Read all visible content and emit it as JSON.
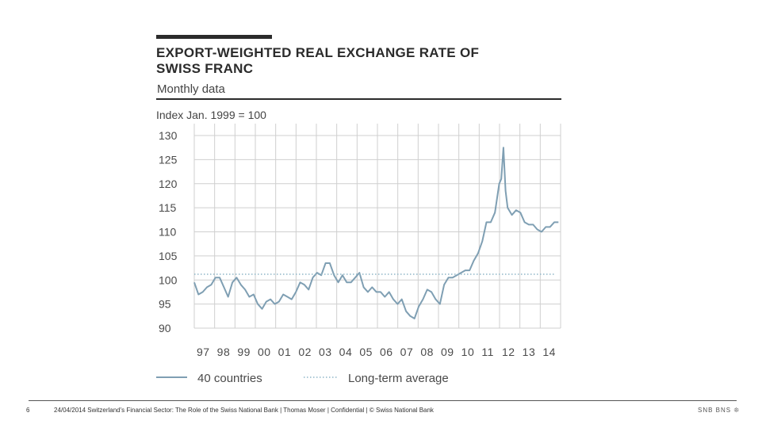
{
  "title_lines": [
    "EXPORT-WEIGHTED REAL EXCHANGE RATE OF",
    "SWISS FRANC"
  ],
  "subtitle": "Monthly data",
  "unit_label": "Index Jan. 1999 = 100",
  "footer": {
    "page_number": "6",
    "text": "24/04/2014 Switzerland's Financial Sector: The Role of the Swiss National Bank | Thomas Moser | Confidential | © Swiss National Bank",
    "logo": "SNB BNS ❊"
  },
  "chart_data": {
    "type": "line",
    "ylim": [
      90,
      130
    ],
    "y_ticks": [
      130,
      125,
      120,
      115,
      110,
      105,
      100,
      95,
      90
    ],
    "x_tick_labels": [
      "97",
      "98",
      "99",
      "00",
      "01",
      "02",
      "03",
      "04",
      "05",
      "06",
      "07",
      "08",
      "09",
      "10",
      "11",
      "12",
      "13",
      "14"
    ],
    "xlim": [
      1997.0,
      2014.3
    ],
    "grid": true,
    "legend_position": "bottom",
    "colors": {
      "series": "#7f9fb3",
      "average": "#8fb6c8",
      "grid": "#cfcfcf"
    },
    "series": [
      {
        "name": "40 countries",
        "style": "solid",
        "x": [
          1997.0,
          1997.2,
          1997.4,
          1997.6,
          1997.8,
          1998.0,
          1998.2,
          1998.4,
          1998.6,
          1998.8,
          1999.0,
          1999.2,
          1999.4,
          1999.6,
          1999.8,
          2000.0,
          2000.2,
          2000.4,
          2000.6,
          2000.8,
          2001.0,
          2001.2,
          2001.4,
          2001.6,
          2001.8,
          2002.0,
          2002.2,
          2002.4,
          2002.6,
          2002.8,
          2003.0,
          2003.2,
          2003.4,
          2003.6,
          2003.8,
          2004.0,
          2004.2,
          2004.4,
          2004.6,
          2004.8,
          2005.0,
          2005.2,
          2005.4,
          2005.6,
          2005.8,
          2006.0,
          2006.2,
          2006.4,
          2006.6,
          2006.8,
          2007.0,
          2007.2,
          2007.4,
          2007.6,
          2007.8,
          2008.0,
          2008.2,
          2008.4,
          2008.6,
          2008.8,
          2009.0,
          2009.2,
          2009.4,
          2009.6,
          2009.8,
          2010.0,
          2010.2,
          2010.4,
          2010.6,
          2010.8,
          2011.0,
          2011.2,
          2011.4,
          2011.5,
          2011.6,
          2011.7,
          2011.8,
          2012.0,
          2012.2,
          2012.4,
          2012.6,
          2012.8,
          2013.0,
          2013.2,
          2013.4,
          2013.6,
          2013.8,
          2014.0,
          2014.2
        ],
        "values": [
          99.5,
          97.0,
          97.5,
          98.5,
          99.0,
          100.5,
          100.5,
          98.5,
          96.5,
          99.5,
          100.5,
          99.0,
          98.0,
          96.5,
          97.0,
          95.0,
          94.0,
          95.5,
          96.0,
          95.0,
          95.5,
          97.0,
          96.5,
          96.0,
          97.5,
          99.5,
          99.0,
          98.0,
          100.5,
          101.5,
          101.0,
          103.5,
          103.5,
          101.0,
          99.5,
          101.0,
          99.5,
          99.5,
          100.5,
          101.5,
          98.5,
          97.5,
          98.5,
          97.5,
          97.5,
          96.5,
          97.5,
          96.0,
          95.0,
          96.0,
          93.5,
          92.5,
          92.0,
          94.5,
          96.0,
          98.0,
          97.5,
          96.0,
          95.0,
          99.0,
          100.5,
          100.5,
          101.0,
          101.5,
          102.0,
          102.0,
          104.0,
          105.5,
          108.0,
          112.0,
          112.0,
          114.0,
          120.0,
          121.0,
          127.5,
          118.5,
          115.0,
          113.5,
          114.5,
          114.0,
          112.0,
          111.5,
          111.5,
          110.5,
          110.0,
          111.0,
          111.0,
          112.0,
          112.0
        ]
      },
      {
        "name": "Long-term average",
        "style": "dotted",
        "x": [
          1997.0,
          2014.0
        ],
        "values": [
          101.2,
          101.2
        ]
      }
    ]
  }
}
